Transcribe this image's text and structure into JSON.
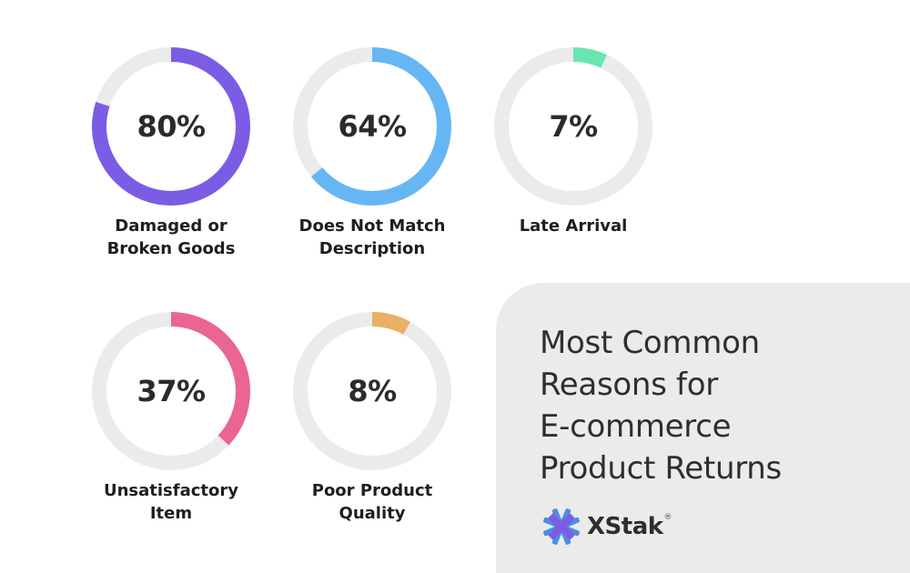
{
  "chart_data": {
    "type": "pie",
    "title": "Most Common Reasons for E-commerce Product Returns",
    "slices": [
      {
        "label_lines": [
          "Damaged or",
          "Broken Goods"
        ],
        "value": 80,
        "display": "80%",
        "color": "#7b5ce5"
      },
      {
        "label_lines": [
          "Does Not Match",
          "Description"
        ],
        "value": 64,
        "display": "64%",
        "color": "#66b6f4"
      },
      {
        "label_lines": [
          "Late Arrival"
        ],
        "value": 7,
        "display": "7%",
        "color": "#6ae6b0"
      },
      {
        "label_lines": [
          "Unsatisfactory",
          "Item"
        ],
        "value": 37,
        "display": "37%",
        "color": "#ea6494"
      },
      {
        "label_lines": [
          "Poor Product",
          "Quality"
        ],
        "value": 8,
        "display": "8%",
        "color": "#eab066"
      }
    ],
    "track_color": "#ebebeb"
  },
  "card": {
    "title_lines": [
      "Most Common",
      "Reasons for",
      "E-commerce",
      "Product Returns"
    ],
    "brand_name": "XStak",
    "brand_reg": "®",
    "brand_icon": "xstak-logo-icon",
    "brand_colors": {
      "blue": "#4a8fe0",
      "purple": "#7d5ce4"
    }
  }
}
